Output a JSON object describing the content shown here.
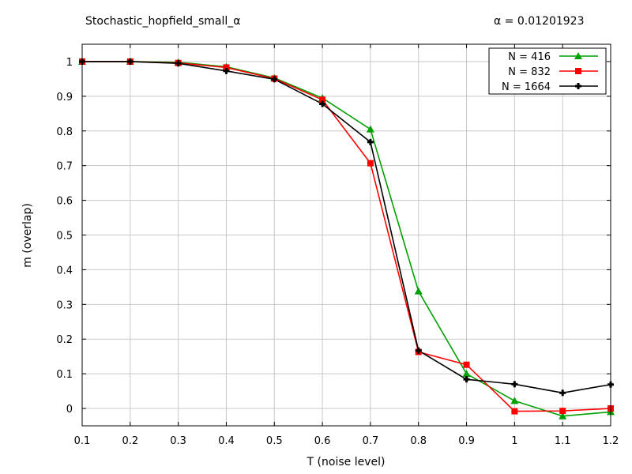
{
  "title": "Stochastic_hopfield_small_α",
  "subtitle": "α = 0.01201923",
  "chart_data": {
    "type": "line",
    "title": "Stochastic_hopfield_small_α",
    "subtitle": "α = 0.01201923",
    "xlabel": "T (noise level)",
    "ylabel": "m (overlap)",
    "xlim": [
      0.1,
      1.2
    ],
    "ylim": [
      -0.05,
      1.05
    ],
    "xticks": [
      "0.1",
      "0.2",
      "0.3",
      "0.4",
      "0.5",
      "0.6",
      "0.7",
      "0.8",
      "0.9",
      "1",
      "1.1",
      "1.2"
    ],
    "yticks": [
      "0",
      "0.1",
      "0.2",
      "0.3",
      "0.4",
      "0.5",
      "0.6",
      "0.7",
      "0.8",
      "0.9",
      "1"
    ],
    "grid": true,
    "legend_position": "top-right",
    "x": [
      0.1,
      0.2,
      0.3,
      0.4,
      0.5,
      0.6,
      0.7,
      0.8,
      0.9,
      1.0,
      1.1,
      1.2
    ],
    "series": [
      {
        "name": "N = 416",
        "color": "#00a000",
        "marker": "triangle",
        "values": [
          1.0,
          1.0,
          0.998,
          0.985,
          0.953,
          0.895,
          0.805,
          0.338,
          0.1,
          0.022,
          -0.022,
          -0.01
        ]
      },
      {
        "name": "N = 832",
        "color": "#ff0000",
        "marker": "square",
        "values": [
          1.0,
          1.0,
          0.996,
          0.983,
          0.951,
          0.89,
          0.707,
          0.163,
          0.126,
          -0.008,
          -0.007,
          0.0
        ]
      },
      {
        "name": "N = 1664",
        "color": "#000000",
        "marker": "plus",
        "values": [
          1.0,
          1.0,
          0.995,
          0.973,
          0.949,
          0.878,
          0.768,
          0.167,
          0.084,
          0.07,
          0.045,
          0.069
        ]
      }
    ]
  }
}
